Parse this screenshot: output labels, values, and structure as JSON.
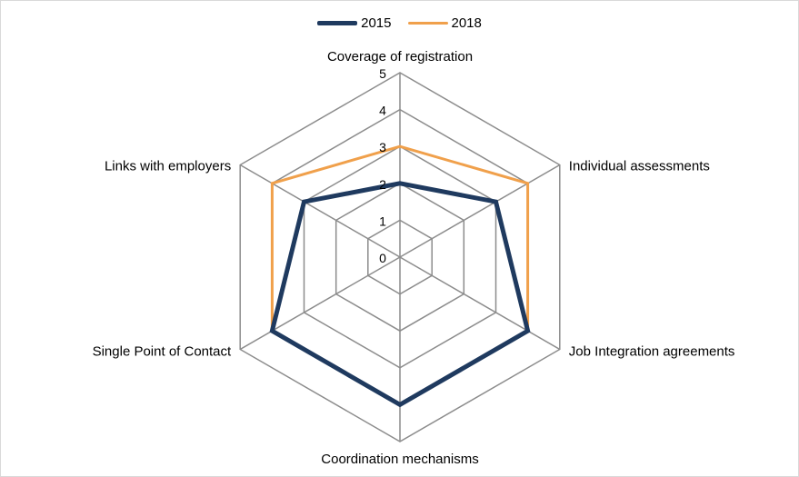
{
  "chart_data": {
    "type": "radar",
    "categories": [
      "Coverage of registration",
      "Individual assessments",
      "Job Integration agreements",
      "Coordination mechanisms",
      "Single Point of Contact",
      "Links with employers"
    ],
    "series": [
      {
        "name": "2015",
        "values": [
          2,
          3,
          4,
          4,
          4,
          3
        ],
        "color": "#1f3a5f"
      },
      {
        "name": "2018",
        "values": [
          3,
          4,
          4,
          4,
          4,
          4
        ],
        "color": "#f0a04b"
      }
    ],
    "r_ticks": [
      "0",
      "1",
      "2",
      "3",
      "4",
      "5"
    ],
    "rlim": [
      0,
      5
    ],
    "grid": true,
    "grid_color": "#8c8c8c",
    "legend_position": "top"
  }
}
